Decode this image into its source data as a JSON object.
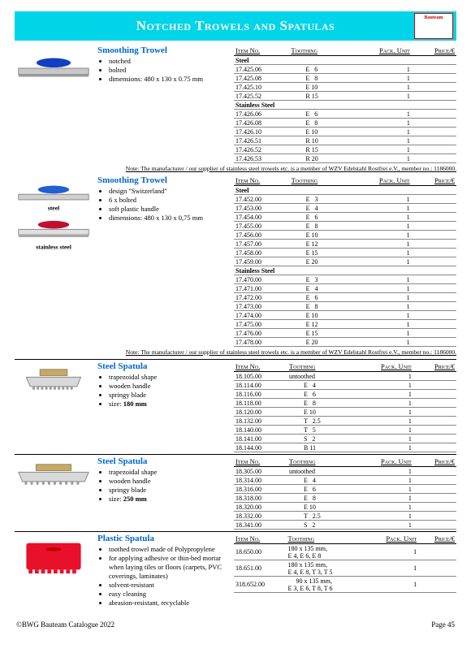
{
  "header": {
    "title": "Notched Trowels and Spatulas",
    "logo": "Bauteam"
  },
  "columns": {
    "item": "Item No.",
    "tooth": "Toothing",
    "pack": "Pack. Unit",
    "price": "Price/€"
  },
  "note": "Note: The manufacturer / our supplier of stainless steel trowels etc. is a member of WZV Edelstahl Rostfrei e.V., member no.: 1186000.",
  "sections": [
    {
      "title": "Smoothing Trowel",
      "bullets": [
        "notched",
        "bolted",
        "dimensions:  480 x 130 x 0.75 mm"
      ],
      "img": "trowel-blue",
      "groups": [
        {
          "sub": "Steel",
          "rows": [
            {
              "i": "17.425.06",
              "t": "E   6",
              "p": "1"
            },
            {
              "i": "17.425.08",
              "t": "E   8",
              "p": "1"
            },
            {
              "i": "17.425.10",
              "t": "E 10",
              "p": "1"
            },
            {
              "i": "17.425.52",
              "t": "R 15",
              "p": "1"
            }
          ]
        },
        {
          "sub": "Stainless Steel",
          "rows": [
            {
              "i": "17.426.06",
              "t": "E   6",
              "p": "1"
            },
            {
              "i": "17.426.08",
              "t": "E   8",
              "p": "1"
            },
            {
              "i": "17.426.10",
              "t": "E 10",
              "p": "1"
            },
            {
              "i": "17.426.51",
              "t": "R 10",
              "p": "1"
            },
            {
              "i": "17.426.52",
              "t": "R 15",
              "p": "1"
            },
            {
              "i": "17.426.53",
              "t": "R 20",
              "p": "1"
            }
          ]
        }
      ],
      "note": true
    },
    {
      "title": "Smoothing Trowel",
      "bullets": [
        "design \"Switzerland\"",
        "6 x bolted",
        "soft plastic handle",
        "dimensions:  480 x 130 x 0,75 mm"
      ],
      "img": "trowel-steel-ss",
      "groups": [
        {
          "sub": "Steel",
          "rows": [
            {
              "i": "17.452.00",
              "t": "E   3",
              "p": "1"
            },
            {
              "i": "17.453.00",
              "t": "E   4",
              "p": "1"
            },
            {
              "i": "17.454.00",
              "t": "E   6",
              "p": "1"
            },
            {
              "i": "17.455.00",
              "t": "E   8",
              "p": "1"
            },
            {
              "i": "17.456.00",
              "t": "E 10",
              "p": "1"
            },
            {
              "i": "17.457.00",
              "t": "E 12",
              "p": "1"
            },
            {
              "i": "17.458.00",
              "t": "E 15",
              "p": "1"
            },
            {
              "i": "17.459.00",
              "t": "E 20",
              "p": "1"
            }
          ]
        },
        {
          "sub": "Stainless Steel",
          "rows": [
            {
              "i": "17.470.00",
              "t": "E   3",
              "p": "1"
            },
            {
              "i": "17.471.00",
              "t": "E   4",
              "p": "1"
            },
            {
              "i": "17.472.00",
              "t": "E   6",
              "p": "1"
            },
            {
              "i": "17.473.00",
              "t": "E   8",
              "p": "1"
            },
            {
              "i": "17.474.00",
              "t": "E 10",
              "p": "1"
            },
            {
              "i": "17.475.00",
              "t": "E 12",
              "p": "1"
            },
            {
              "i": "17.476.00",
              "t": "E 15",
              "p": "1"
            },
            {
              "i": "17.478.00",
              "t": "E 20",
              "p": "1"
            }
          ]
        }
      ],
      "note": true
    },
    {
      "title": "Steel Spatula",
      "bullets": [
        "trapezoidal shape",
        "wooden handle",
        "springy blade",
        "size:  <b>180 mm</b>"
      ],
      "img": "spatula-180",
      "groups": [
        {
          "sub": null,
          "rows": [
            {
              "i": "18.105.00",
              "t": "untoothed",
              "p": "1"
            },
            {
              "i": "18.114.00",
              "t": "E   4",
              "p": "1"
            },
            {
              "i": "18.116.00",
              "t": "E   6",
              "p": "1"
            },
            {
              "i": "18.118.00",
              "t": "E   8",
              "p": "1"
            },
            {
              "i": "18.120.00",
              "t": "E 10",
              "p": "1"
            },
            {
              "i": "18.132.00",
              "t": "T   2.5",
              "p": "1"
            },
            {
              "i": "18.140.00",
              "t": "T   5",
              "p": "1"
            },
            {
              "i": "18.141.00",
              "t": "S   2",
              "p": "1"
            },
            {
              "i": "18.144.00",
              "t": "B 11",
              "p": "1"
            }
          ]
        }
      ]
    },
    {
      "title": "Steel Spatula",
      "bullets": [
        "trapezoidal shape",
        "wooden handle",
        "springy blade",
        "size:  <b>250 mm</b>"
      ],
      "img": "spatula-250",
      "groups": [
        {
          "sub": null,
          "rows": [
            {
              "i": "18.305.00",
              "t": "untoothed",
              "p": "1"
            },
            {
              "i": "18.314.00",
              "t": "E   4",
              "p": "1"
            },
            {
              "i": "18.316.00",
              "t": "E   6",
              "p": "1"
            },
            {
              "i": "18.318.00",
              "t": "E   8",
              "p": "1"
            },
            {
              "i": "18.320.00",
              "t": "E 10",
              "p": "1"
            },
            {
              "i": "18.332.00",
              "t": "T   2.5",
              "p": "1"
            },
            {
              "i": "18.341.00",
              "t": "S   2",
              "p": "1"
            }
          ]
        }
      ]
    },
    {
      "title": "Plastic Spatula",
      "bullets": [
        "toothed trowel made of Polypropylene",
        "for applying adhesive or thin-bed mortar when laying tiles or floors (carpets, PVC coverings, laminates)",
        "solvent-resistant",
        "easy cleaning",
        "abrasion-resistant, recyclable"
      ],
      "img": "plastic-red",
      "groups": [
        {
          "sub": null,
          "rows": [
            {
              "i": "18.650.00",
              "t": "180 x 135 mm,\nE 4, E 6, E 8",
              "p": "1"
            },
            {
              "i": "18.651.00",
              "t": "180 x 135 mm,\nE 4, E 8, T 3, T 5",
              "p": "1"
            },
            {
              "i": "318.652.00",
              "t": "     90 x 135 mm,\nE 3, E 6, T 8, T 6",
              "p": "1"
            }
          ]
        }
      ]
    }
  ],
  "footer": {
    "left": "©BWG Bauteam     Catalogue 2022",
    "right": "Page  45"
  }
}
